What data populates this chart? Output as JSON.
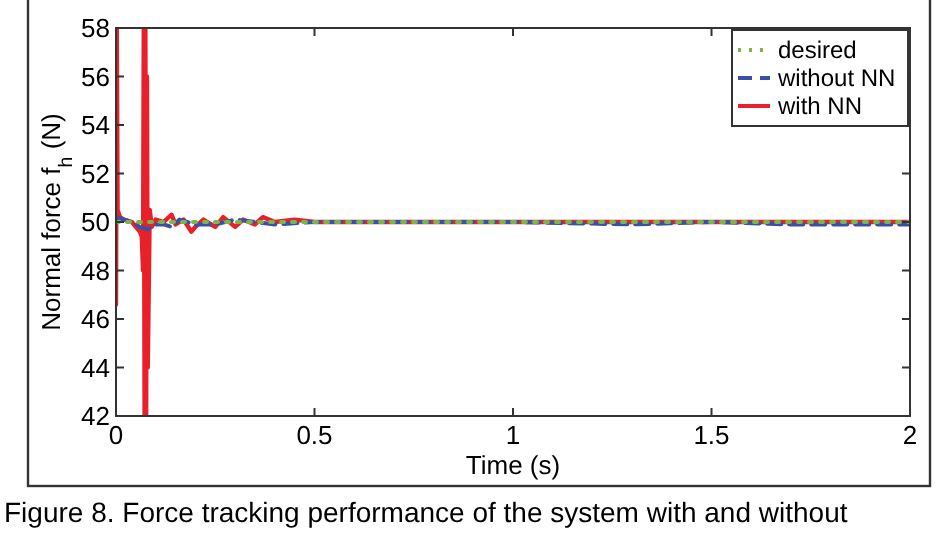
{
  "chart_data": {
    "type": "line",
    "xlabel": "Time (s)",
    "ylabel": "Normal force f$_{h}$ (N)",
    "xlim": [
      0,
      2
    ],
    "xticks": [
      0,
      0.5,
      1,
      1.5,
      2
    ],
    "ylim": [
      42,
      58
    ],
    "yticks": [
      42,
      44,
      46,
      48,
      50,
      52,
      54,
      56,
      58
    ],
    "legend": "top right",
    "grid": false,
    "annotations": [
      "Figure 8.  Force tracking performance of the system with and without"
    ],
    "series": [
      {
        "name": "desired",
        "color": "#7ab648",
        "line_style": "dotted",
        "x": [
          0,
          2
        ],
        "values": [
          50,
          50
        ]
      },
      {
        "name": "without NN",
        "color": "#3a4fa8",
        "line_style": "dashed",
        "x": [
          0,
          0.02,
          0.04,
          0.06,
          0.08,
          0.1,
          0.12,
          0.14,
          0.16,
          0.2,
          0.25,
          0.3,
          0.4,
          0.5,
          1,
          1.3,
          1.5,
          1.7,
          2
        ],
        "values": [
          50.2,
          50.1,
          50.0,
          49.8,
          49.7,
          49.9,
          49.9,
          49.8,
          50.1,
          49.9,
          49.9,
          50.1,
          49.9,
          50,
          50,
          49.9,
          50,
          49.9,
          49.9
        ]
      },
      {
        "name": "with NN",
        "color": "#e8202a",
        "line_style": "solid",
        "x": [
          0,
          0.002,
          0.004,
          0.01,
          0.02,
          0.04,
          0.05,
          0.06,
          0.065,
          0.068,
          0.07,
          0.072,
          0.074,
          0.076,
          0.078,
          0.08,
          0.085,
          0.09,
          0.1,
          0.12,
          0.14,
          0.15,
          0.17,
          0.19,
          0.2,
          0.22,
          0.25,
          0.27,
          0.3,
          0.32,
          0.35,
          0.37,
          0.4,
          0.45,
          0.5,
          0.6,
          0.8,
          1,
          1.2,
          1.4,
          1.6,
          1.8,
          2
        ],
        "values": [
          46.6,
          58,
          50.5,
          50.2,
          50.1,
          50.0,
          49.8,
          49.6,
          49.4,
          48,
          58,
          42,
          58,
          42,
          56,
          44,
          50.5,
          49.8,
          50.1,
          50.0,
          50.3,
          49.9,
          50.1,
          49.6,
          49.8,
          50.1,
          49.8,
          50.2,
          49.8,
          50.1,
          49.9,
          50.2,
          50.0,
          50.1,
          50,
          50,
          50,
          50,
          50,
          50,
          50,
          50,
          50
        ]
      }
    ]
  }
}
